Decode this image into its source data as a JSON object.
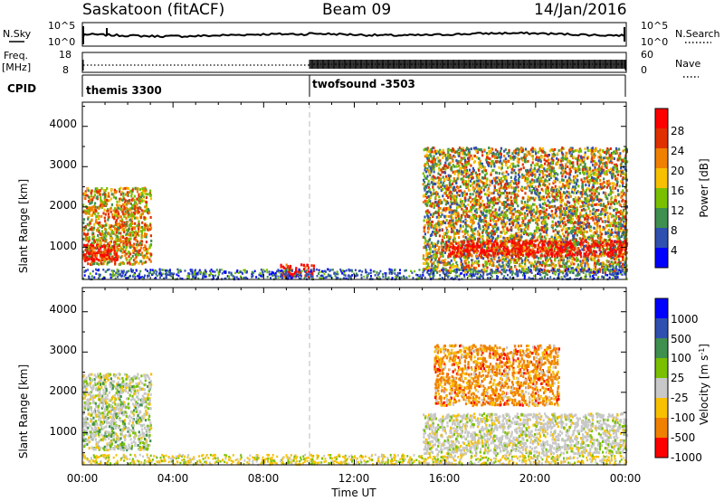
{
  "header": {
    "station": "Saskatoon (fitACF)",
    "beam": "Beam 09",
    "date": "14/Jan/2016"
  },
  "nsky_panel": {
    "left_label": "N.Sky",
    "right_label": "N.Search",
    "left_ticks": [
      "10^5",
      "10^0"
    ],
    "right_ticks": [
      "10^5",
      "10^0"
    ]
  },
  "freq_panel": {
    "left_label": "Freq.",
    "left_unit": "[MHz]",
    "right_label": "Nave",
    "left_ticks": [
      "18",
      "8"
    ],
    "right_ticks": [
      "60",
      "0"
    ]
  },
  "cpid_panel": {
    "label": "CPID",
    "modes": [
      "themis 3300",
      "twofsound -3503"
    ]
  },
  "chart_data": [
    {
      "type": "heatmap",
      "name": "power",
      "xlabel": "Time UT",
      "ylabel": "Slant Range [km]",
      "x_ticks": [
        "00:00",
        "04:00",
        "08:00",
        "12:00",
        "16:00",
        "20:00",
        "00:00"
      ],
      "y_ticks": [
        "1000",
        "2000",
        "3000",
        "4000"
      ],
      "ylim": [
        200,
        4600
      ],
      "colorbar": {
        "label": "Power [dB]",
        "ticks": [
          "28",
          "24",
          "20",
          "16",
          "12",
          "8",
          "4"
        ]
      },
      "scatter_regions": [
        {
          "t0": 0.0,
          "t1": 3.0,
          "r0": 600,
          "r1": 2500,
          "level": "mixed-high"
        },
        {
          "t0": 0.0,
          "t1": 1.5,
          "r0": 700,
          "r1": 1100,
          "level": "high"
        },
        {
          "t0": 8.7,
          "t1": 10.2,
          "r0": 300,
          "r1": 600,
          "level": "high"
        },
        {
          "t0": 15.0,
          "t1": 24.0,
          "r0": 400,
          "r1": 3500,
          "level": "mixed"
        },
        {
          "t0": 16.0,
          "t1": 24.0,
          "r0": 800,
          "r1": 1200,
          "level": "high"
        }
      ]
    },
    {
      "type": "heatmap",
      "name": "velocity",
      "xlabel": "Time UT",
      "ylabel": "Slant Range [km]",
      "x_ticks": [
        "00:00",
        "04:00",
        "08:00",
        "12:00",
        "16:00",
        "20:00",
        "00:00"
      ],
      "y_ticks": [
        "1000",
        "2000",
        "3000",
        "4000"
      ],
      "ylim": [
        200,
        4600
      ],
      "colorbar": {
        "label": "Velocity",
        "unit": "[m s",
        "unit_exp": "-1",
        "unit_end": "]",
        "ticks": [
          "1000",
          "500",
          "100",
          "25",
          "-25",
          "-100",
          "-500",
          "-1000"
        ]
      },
      "scatter_regions": [
        {
          "t0": 0.0,
          "t1": 3.0,
          "r0": 600,
          "r1": 2500,
          "level": "mixed-low"
        },
        {
          "t0": 15.5,
          "t1": 21.0,
          "r0": 1700,
          "r1": 3200,
          "level": "negative"
        },
        {
          "t0": 15.0,
          "t1": 24.0,
          "r0": 500,
          "r1": 1500,
          "level": "near-zero"
        }
      ]
    }
  ],
  "colors": {
    "power_scale": [
      "#0000ff",
      "#3050b0",
      "#3f8f4f",
      "#79c000",
      "#f7c000",
      "#f08000",
      "#e03000",
      "#ff0000"
    ],
    "velocity_scale": [
      "#0000ff",
      "#3050b0",
      "#3f8f4f",
      "#79c000",
      "#c8c8c8",
      "#f7c000",
      "#f08000",
      "#ff0000"
    ]
  }
}
